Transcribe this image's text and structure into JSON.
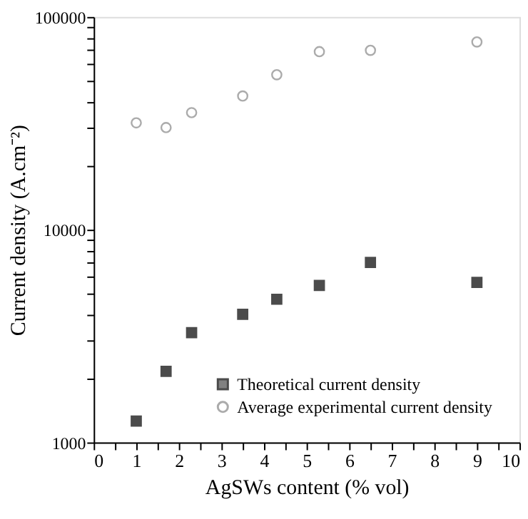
{
  "chart_data": {
    "type": "scatter",
    "xlabel": "AgSWs content (% vol)",
    "ylabel": "Current density (A.cm⁻²)",
    "log": "y",
    "xlim": [
      0,
      10
    ],
    "xticks": [
      0,
      {
        "value": 0.5,
        "label": null
      },
      1,
      {
        "value": 1.5,
        "label": null
      },
      2,
      {
        "value": 2.5,
        "label": null
      },
      3,
      {
        "value": 3.5,
        "label": null
      },
      4,
      {
        "value": 4.5,
        "label": null
      },
      5,
      {
        "value": 5.5,
        "label": null
      },
      6,
      {
        "value": 6.5,
        "label": null
      },
      7,
      {
        "value": 7.5,
        "label": null
      },
      8,
      {
        "value": 8.5,
        "label": null
      },
      9,
      {
        "value": 9.5,
        "label": null
      },
      10
    ],
    "ylim": [
      1000,
      100000
    ],
    "yticks": [
      1000,
      {
        "value": 2000,
        "label": null
      },
      {
        "value": 3000,
        "label": null
      },
      {
        "value": 4000,
        "label": null
      },
      {
        "value": 5000,
        "label": null
      },
      {
        "value": 6000,
        "label": null
      },
      {
        "value": 7000,
        "label": null
      },
      {
        "value": 8000,
        "label": null
      },
      {
        "value": 9000,
        "label": null
      },
      10000,
      {
        "value": 20000,
        "label": null
      },
      {
        "value": 30000,
        "label": null
      },
      {
        "value": 40000,
        "label": null
      },
      {
        "value": 50000,
        "label": null
      },
      {
        "value": 60000,
        "label": null
      },
      {
        "value": 70000,
        "label": null
      },
      {
        "value": 80000,
        "label": null
      },
      {
        "value": 90000,
        "label": null
      },
      100000
    ],
    "grid": false,
    "legend": "bottom right",
    "x": [
      1,
      1.7,
      2.3,
      3.5,
      4.3,
      5.3,
      6.5,
      9
    ],
    "series": [
      {
        "name": "Theoretical current density",
        "color": "#000000",
        "marker": "square",
        "values": [
          1260,
          2160,
          3280,
          4000,
          4710,
          5470,
          7010,
          5650
        ]
      },
      {
        "name": "Average experimental current density",
        "color": "#888888",
        "marker": "circle",
        "values": [
          31800,
          30200,
          35500,
          42500,
          53500,
          68700,
          69700,
          76300
        ]
      }
    ]
  }
}
